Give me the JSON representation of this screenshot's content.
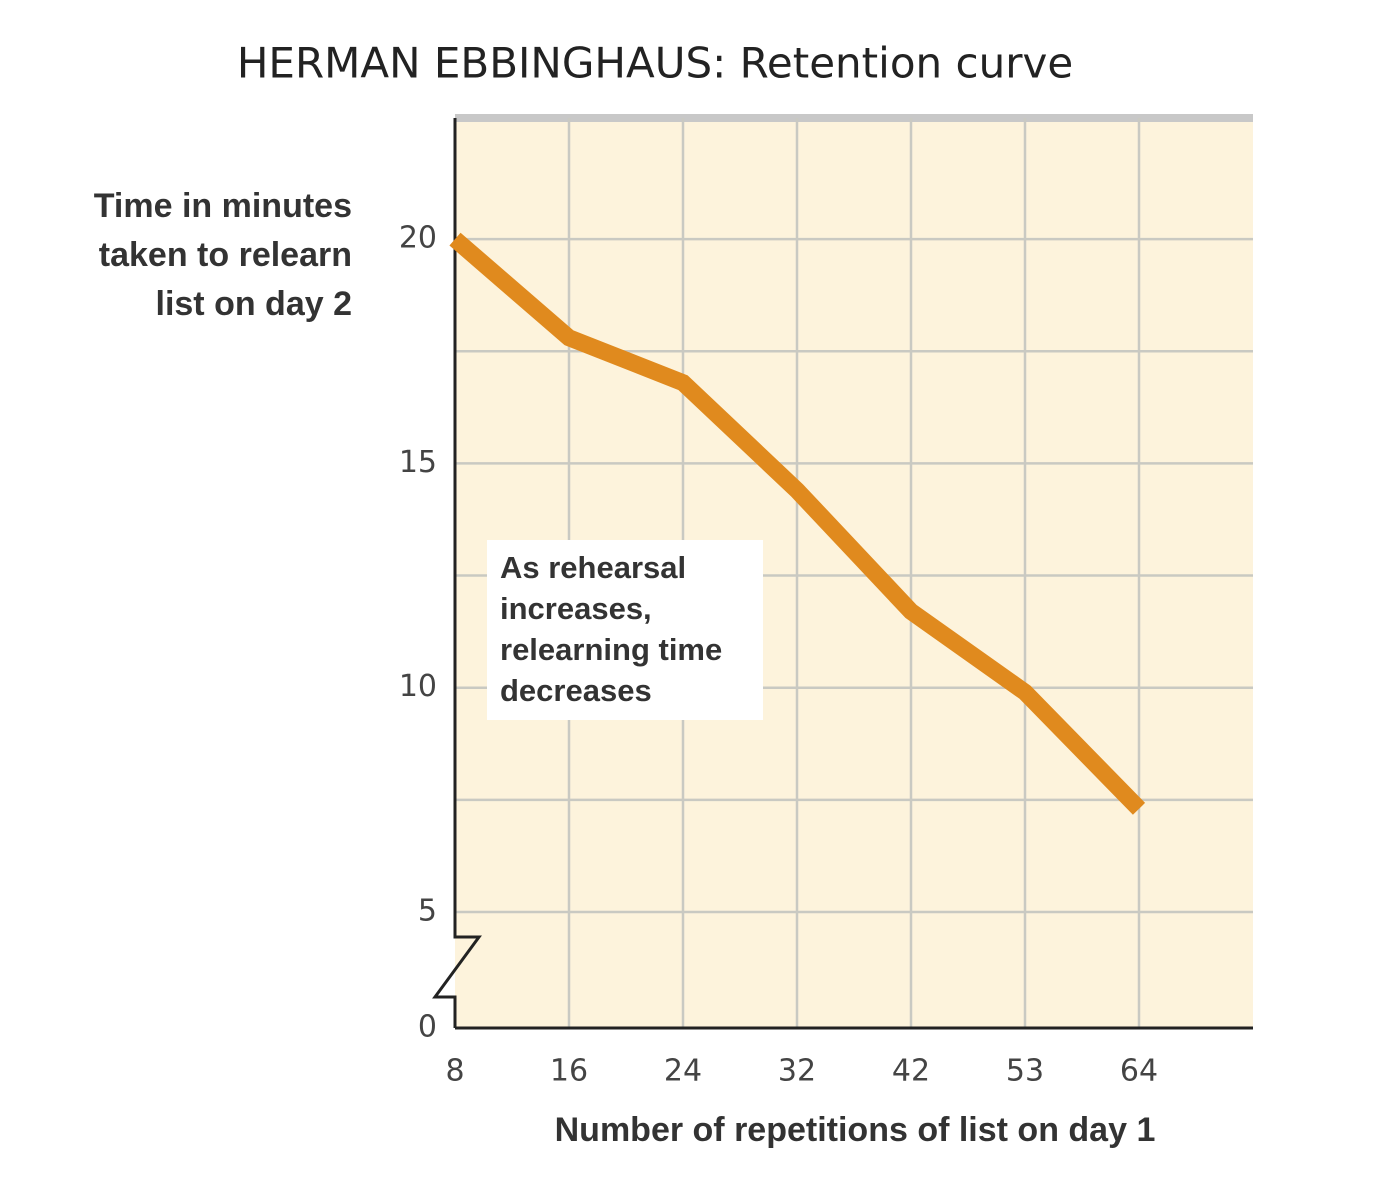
{
  "chart_data": {
    "type": "line",
    "title": "HERMAN EBBINGHAUS: Retention curve",
    "ylabel": [
      "Time in minutes",
      "taken to relearn",
      "list on day 2"
    ],
    "xlabel": "Number of repetitions of list on day 1",
    "annotation": [
      "As rehearsal",
      "increases,",
      "relearning time",
      "decreases"
    ],
    "categories": [
      "8",
      "16",
      "24",
      "32",
      "42",
      "53",
      "64"
    ],
    "values": [
      20,
      17.8,
      16.8,
      14.4,
      11.7,
      9.9,
      7.3
    ],
    "color": "#e08a1e",
    "ylim": [
      0,
      22.7
    ],
    "yticks": [
      0,
      5,
      10,
      15,
      20
    ],
    "yminorticks": [
      7.5,
      12.5,
      17.5
    ],
    "axis_break": true,
    "grid": true,
    "background": "#fdf3dc"
  }
}
